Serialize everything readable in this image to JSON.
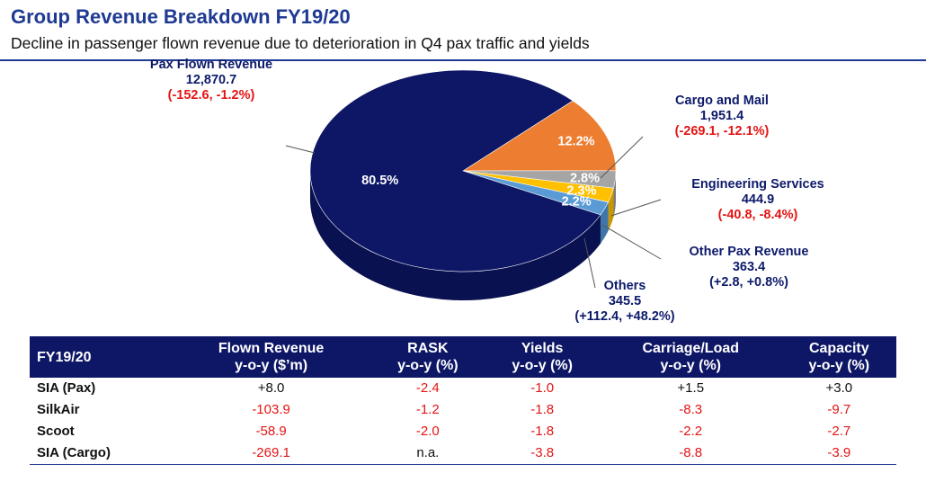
{
  "header": {
    "title": "Group Revenue Breakdown FY19/20",
    "subtitle": "Decline in passenger flown revenue due to deterioration in Q4 pax traffic and yields"
  },
  "chart_data": {
    "type": "pie",
    "title": "Group Revenue Breakdown FY19/20",
    "slices": [
      {
        "name": "Pax Flown Revenue",
        "value": 12870.7,
        "pct_label": "80.5%",
        "change": "(-152.6, -1.2%)",
        "change_sign": "neg",
        "color": "#0e1766",
        "side": "#0a1150"
      },
      {
        "name": "Cargo and Mail",
        "value": 1951.4,
        "pct_label": "12.2%",
        "change": "(-269.1, -12.1%)",
        "change_sign": "neg",
        "color": "#ed7d31",
        "side": "#b85d1f"
      },
      {
        "name": "Engineering Services",
        "value": 444.9,
        "pct_label": "2.8%",
        "change": "(-40.8, -8.4%)",
        "change_sign": "neg",
        "color": "#a5a5a5",
        "side": "#7a7a7a"
      },
      {
        "name": "Other Pax Revenue",
        "value": 363.4,
        "pct_label": "2.3%",
        "change": "(+2.8, +0.8%)",
        "change_sign": "pos",
        "color": "#ffc000",
        "side": "#c99700"
      },
      {
        "name": "Others",
        "value": 345.5,
        "pct_label": "2.2%",
        "change": "(+112.4, +48.2%)",
        "change_sign": "pos",
        "color": "#5b9bd5",
        "side": "#3f76a8"
      }
    ]
  },
  "labels": {
    "pax": {
      "name": "Pax Flown Revenue",
      "value": "12,870.7",
      "change": "(-152.6, -1.2%)"
    },
    "cargo": {
      "name": "Cargo and Mail",
      "value": "1,951.4",
      "change": "(-269.1, -12.1%)"
    },
    "eng": {
      "name": "Engineering Services",
      "value": "444.9",
      "change": "(-40.8, -8.4%)"
    },
    "opax": {
      "name": "Other Pax Revenue",
      "value": "363.4",
      "change": "(+2.8, +0.8%)"
    },
    "oth": {
      "name": "Others",
      "value": "345.5",
      "change": "(+112.4, +48.2%)"
    }
  },
  "table": {
    "columns": [
      {
        "l1": "FY19/20",
        "l2": ""
      },
      {
        "l1": "Flown Revenue",
        "l2": "y-o-y ($’m)"
      },
      {
        "l1": "RASK",
        "l2": "y-o-y (%)"
      },
      {
        "l1": "Yields",
        "l2": "y-o-y (%)"
      },
      {
        "l1": "Carriage/Load",
        "l2": "y-o-y (%)"
      },
      {
        "l1": "Capacity",
        "l2": "y-o-y (%)"
      }
    ],
    "rows": [
      {
        "name": "SIA (Pax)",
        "cells": [
          "+8.0",
          "-2.4",
          "-1.0",
          "+1.5",
          "+3.0"
        ]
      },
      {
        "name": "SilkAir",
        "cells": [
          "-103.9",
          "-1.2",
          "-1.8",
          "-8.3",
          "-9.7"
        ]
      },
      {
        "name": "Scoot",
        "cells": [
          "-58.9",
          "-2.0",
          "-1.8",
          "-2.2",
          "-2.7"
        ]
      },
      {
        "name": "SIA (Cargo)",
        "cells": [
          "-269.1",
          "n.a.",
          "-3.8",
          "-8.8",
          "-3.9"
        ]
      }
    ]
  }
}
